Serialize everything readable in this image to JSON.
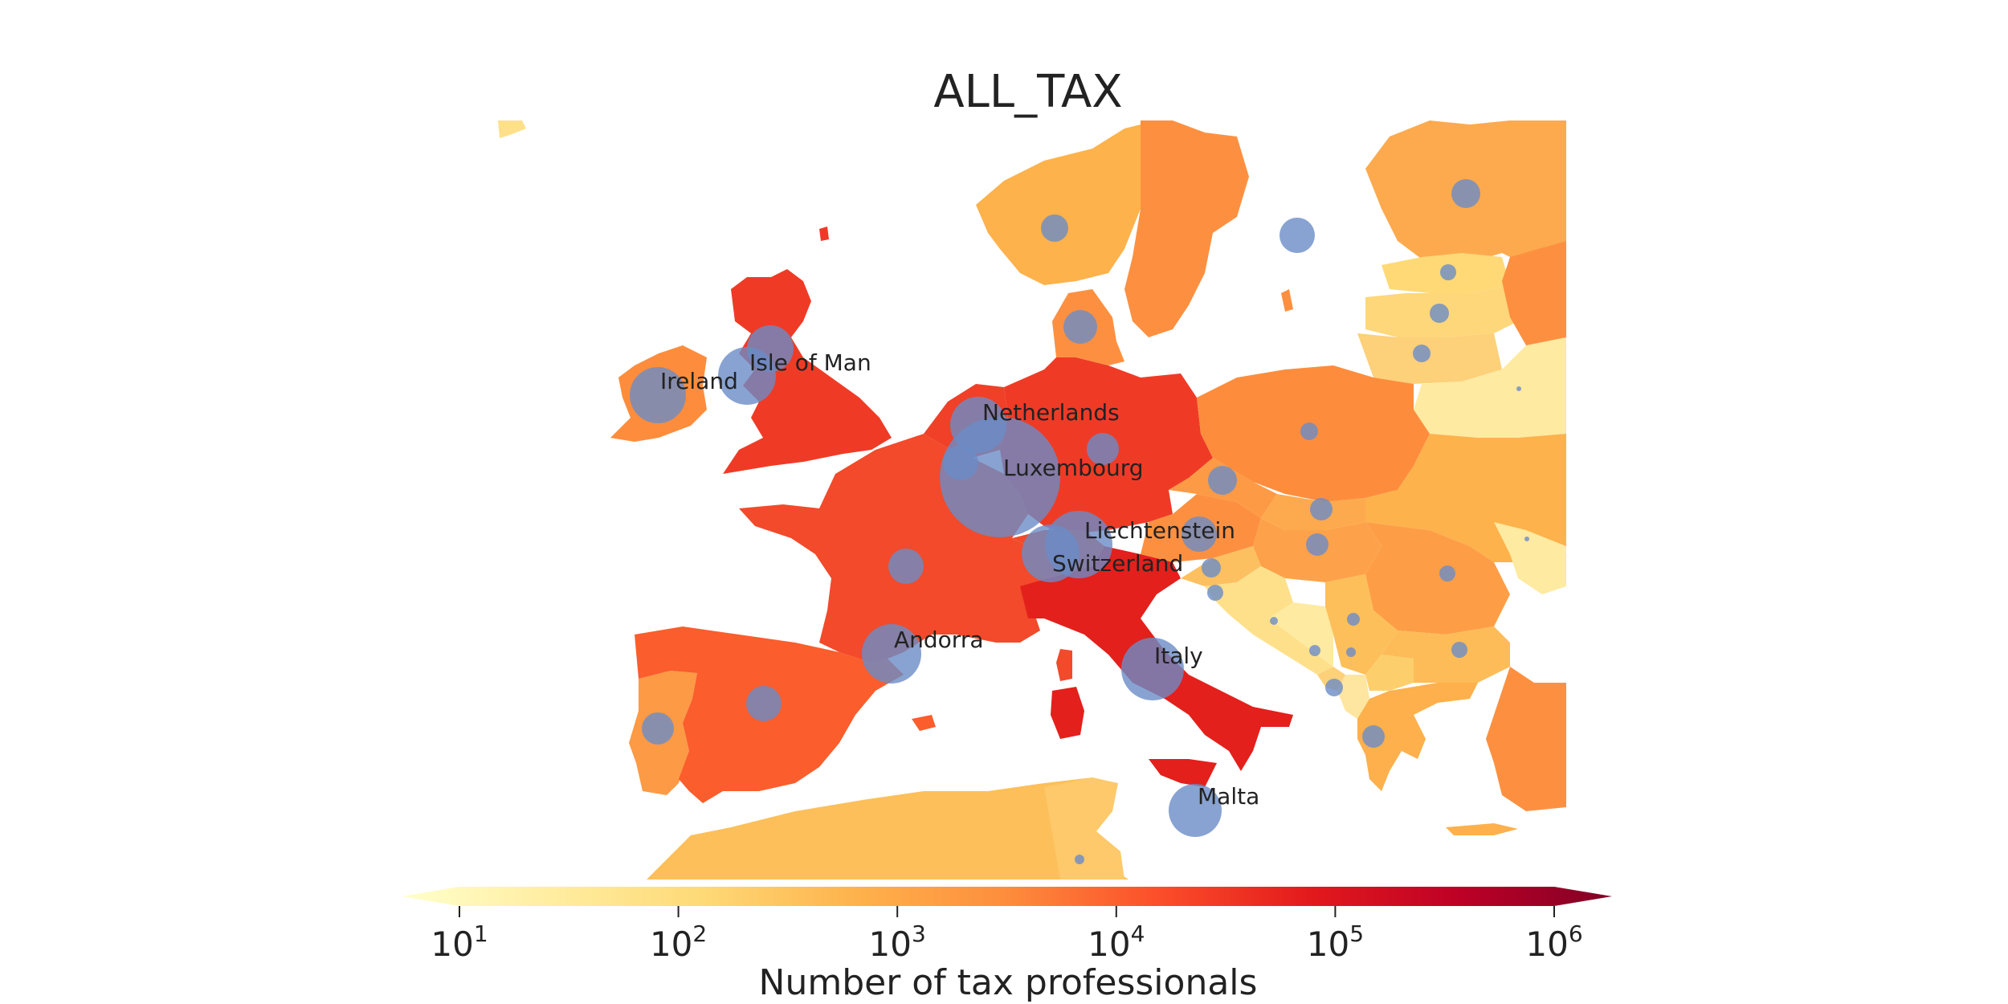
{
  "title": "ALL_TAX",
  "colorbar": {
    "label": "Number of tax professionals",
    "scale": "log",
    "range": [
      10,
      1000000
    ],
    "ticks": [
      {
        "base": "10",
        "exp": "1",
        "value": 10
      },
      {
        "base": "10",
        "exp": "2",
        "value": 100
      },
      {
        "base": "10",
        "exp": "3",
        "value": 1000
      },
      {
        "base": "10",
        "exp": "4",
        "value": 10000
      },
      {
        "base": "10",
        "exp": "5",
        "value": 100000
      },
      {
        "base": "10",
        "exp": "6",
        "value": 1000000
      }
    ],
    "colormap": [
      "#ffffcc",
      "#ffeda0",
      "#fed976",
      "#feb24c",
      "#fd8d3c",
      "#fc4e2a",
      "#e31a1c",
      "#bd0026",
      "#800026"
    ]
  },
  "bubble_color": "#6a8cc7",
  "labeled_bubbles": [
    {
      "name": "Ireland"
    },
    {
      "name": "Isle of Man"
    },
    {
      "name": "Netherlands"
    },
    {
      "name": "Luxembourg"
    },
    {
      "name": "Liechtenstein"
    },
    {
      "name": "Switzerland"
    },
    {
      "name": "Andorra"
    },
    {
      "name": "Italy"
    },
    {
      "name": "Malta"
    }
  ]
}
